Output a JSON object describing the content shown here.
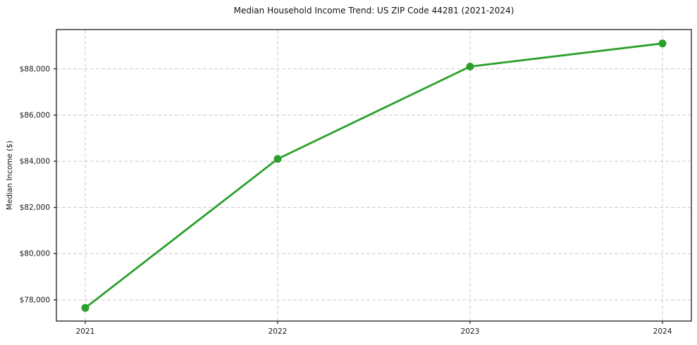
{
  "chart_data": {
    "type": "line",
    "title": "Median Household Income Trend: US ZIP Code 44281 (2021-2024)",
    "xlabel": "",
    "ylabel": "Median Income ($)",
    "x": [
      2021,
      2022,
      2023,
      2024
    ],
    "x_tick_labels": [
      "2021",
      "2022",
      "2023",
      "2024"
    ],
    "series": [
      {
        "name": "Median Household Income",
        "values": [
          77650,
          84100,
          88100,
          89100
        ]
      }
    ],
    "y_ticks": [
      78000,
      80000,
      82000,
      84000,
      86000,
      88000
    ],
    "y_tick_labels": [
      "$78,000",
      "$80,000",
      "$82,000",
      "$84,000",
      "$86,000",
      "$88,000"
    ],
    "xlim": [
      2020.85,
      2024.15
    ],
    "ylim": [
      77080,
      89700
    ],
    "grid": true,
    "legend": "none",
    "colors": {
      "line": "#2ca02c",
      "marker": "#2ca02c",
      "grid": "#cccccc",
      "frame": "#1a1a1a",
      "background": "#ffffff",
      "text": "#1a1a1a"
    }
  }
}
